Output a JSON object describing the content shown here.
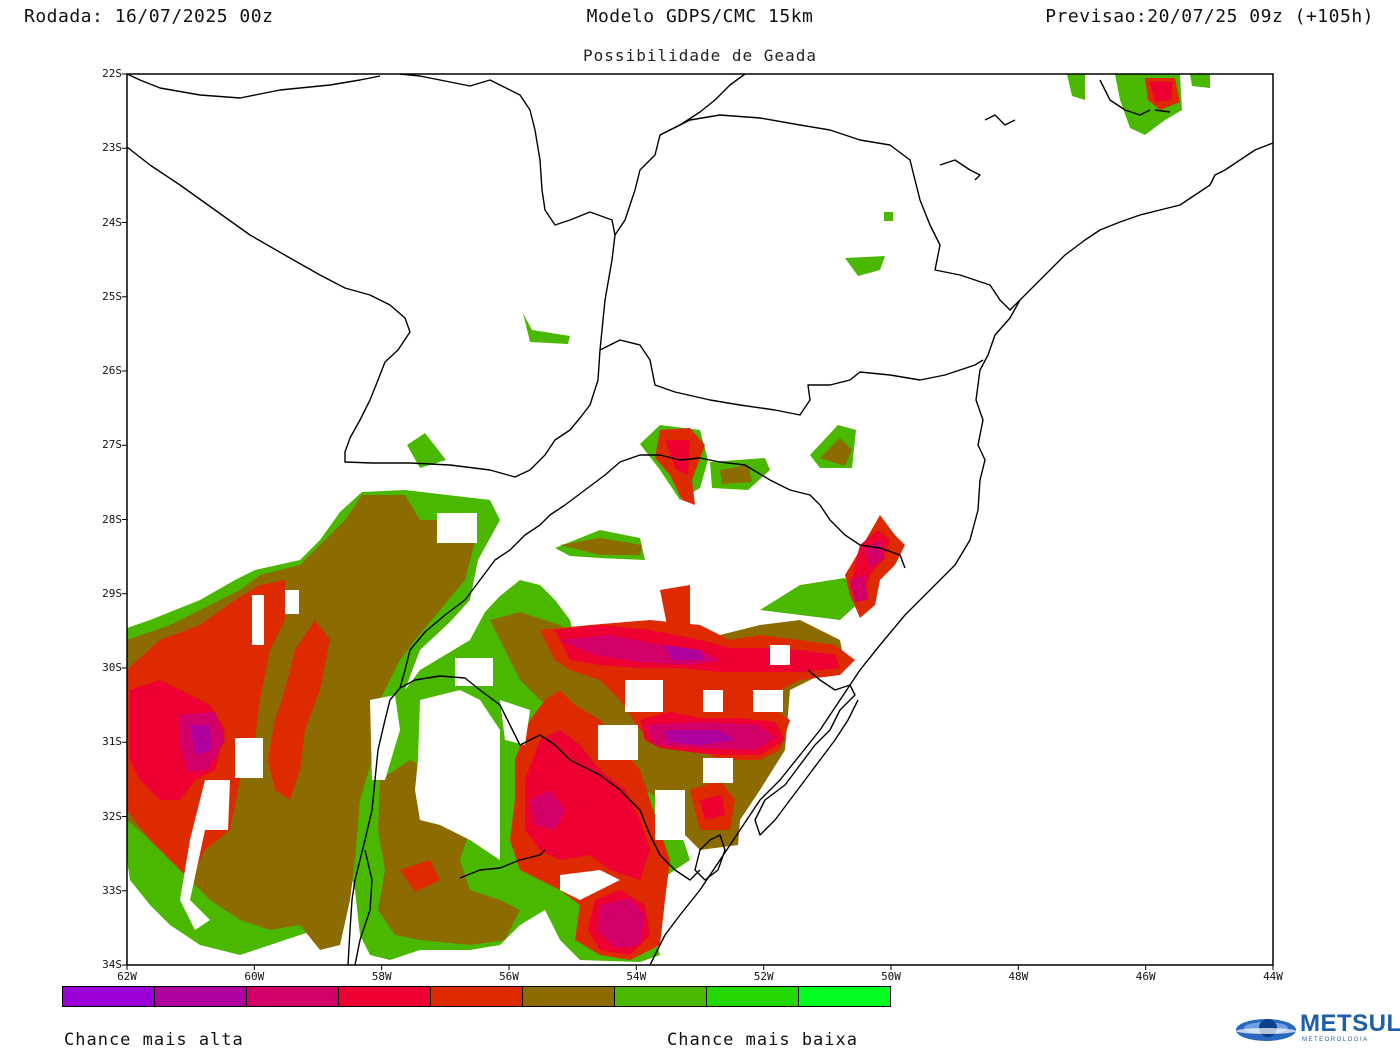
{
  "header": {
    "left": "Rodada: 16/07/2025 00z",
    "center": "Modelo GDPS/CMC 15km",
    "right": "Previsao:20/07/25 09z (+105h)",
    "subtitle": "Possibilidade de Geada"
  },
  "axes": {
    "lat_labels": [
      "22S",
      "23S",
      "24S",
      "25S",
      "26S",
      "27S",
      "28S",
      "29S",
      "30S",
      "31S",
      "32S",
      "33S",
      "34S"
    ],
    "lon_labels": [
      "62W",
      "60W",
      "58W",
      "56W",
      "54W",
      "52W",
      "50W",
      "48W",
      "46W",
      "44W"
    ]
  },
  "legend": {
    "colors": [
      "#9b00d6",
      "#b0009e",
      "#d3006a",
      "#ee0033",
      "#dd2a00",
      "#8c6b00",
      "#4bb800",
      "#22d800",
      "#00ff20"
    ],
    "high_label": "Chance mais alta",
    "low_label": "Chance mais baixa"
  },
  "logo": {
    "text": "METSUL",
    "sub": "METEOROLOGIA",
    "icon": "globe-logo-icon"
  }
}
